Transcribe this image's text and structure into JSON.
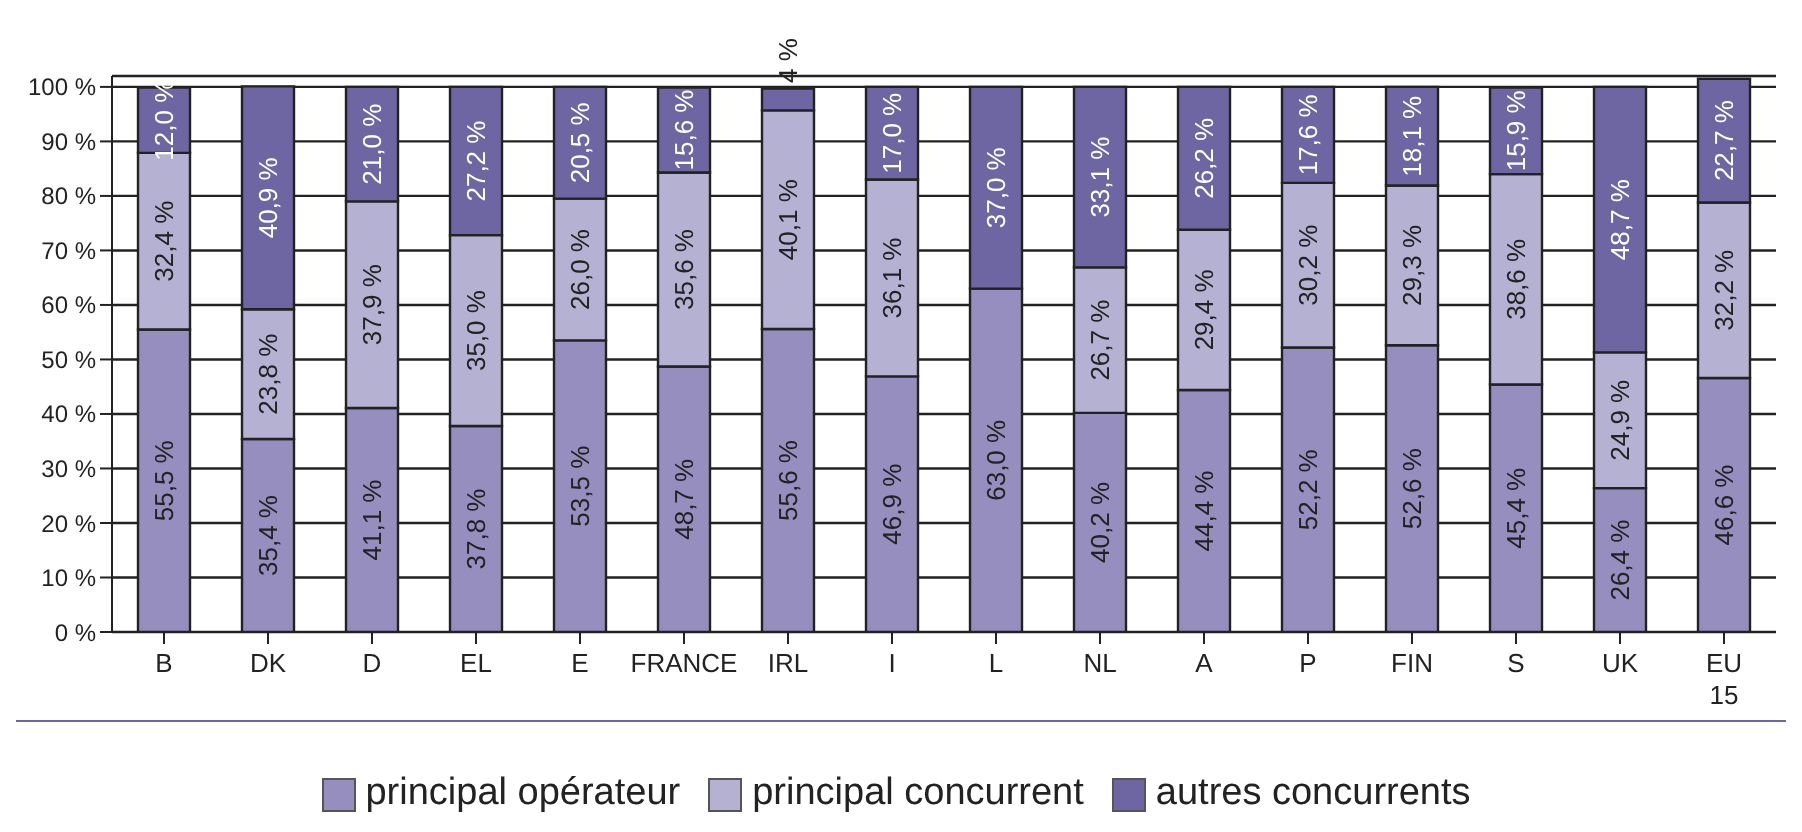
{
  "chart_data": {
    "type": "bar",
    "stacked": true,
    "categories": [
      "B",
      "DK",
      "D",
      "EL",
      "E",
      "FRANCE",
      "IRL",
      "I",
      "L",
      "NL",
      "A",
      "P",
      "FIN",
      "S",
      "UK",
      "EU 15"
    ],
    "series": [
      {
        "name": "principal opérateur",
        "color": "#958ebf",
        "values": [
          55.5,
          35.4,
          41.1,
          37.8,
          53.5,
          48.7,
          55.6,
          46.9,
          63.0,
          40.2,
          44.4,
          52.2,
          52.6,
          45.4,
          26.4,
          46.6
        ],
        "value_labels": [
          "55,5 %",
          "35,4 %",
          "41,1 %",
          "37,8 %",
          "53,5 %",
          "48,7 %",
          "55,6 %",
          "46,9 %",
          "63,0 %",
          "40,2 %",
          "44,4 %",
          "52,2 %",
          "52,6 %",
          "45,4 %",
          "26,4 %",
          "46,6 %"
        ]
      },
      {
        "name": "principal concurrent",
        "color": "#b5b1d3",
        "values": [
          32.4,
          23.8,
          37.9,
          35.0,
          26.0,
          35.6,
          40.1,
          36.1,
          0,
          26.7,
          29.4,
          30.2,
          29.3,
          38.6,
          24.9,
          32.2
        ],
        "value_labels": [
          "32,4 %",
          "23,8 %",
          "37,9 %",
          "35,0 %",
          "26,0 %",
          "35,6 %",
          "40,1 %",
          "36,1 %",
          null,
          "26,7 %",
          "29,4 %",
          "30,2 %",
          "29,3 %",
          "38,6 %",
          "24,9 %",
          "32,2 %"
        ]
      },
      {
        "name": "autres concurrents",
        "color": "#6d66a3",
        "values": [
          12.0,
          40.9,
          21.0,
          27.2,
          20.5,
          15.6,
          4,
          17.0,
          37.0,
          33.1,
          26.2,
          17.6,
          18.1,
          15.9,
          48.7,
          22.7
        ],
        "value_labels": [
          "12,0 %",
          "40,9 %",
          "21,0 %",
          "27,2 %",
          "20,5 %",
          "15,6 %",
          "4 %",
          "17,0 %",
          "37,0 %",
          "33,1 %",
          "26,2 %",
          "17,6 %",
          "18,1 %",
          "15,9 %",
          "48,7 %",
          "22,7 %"
        ]
      }
    ],
    "ylim": [
      0,
      102
    ],
    "yticks": [
      {
        "value": 0,
        "label": "0 %"
      },
      {
        "value": 10,
        "label": "10 %"
      },
      {
        "value": 20,
        "label": "20 %"
      },
      {
        "value": 30,
        "label": "30 %"
      },
      {
        "value": 40,
        "label": "40 %"
      },
      {
        "value": 50,
        "label": "50 %"
      },
      {
        "value": 60,
        "label": "60 %"
      },
      {
        "value": 70,
        "label": "70 %"
      },
      {
        "value": 80,
        "label": "80 %"
      },
      {
        "value": 90,
        "label": "90 %"
      },
      {
        "value": 100,
        "label": "100 %"
      }
    ],
    "grid": "y",
    "legend": "bottom"
  }
}
